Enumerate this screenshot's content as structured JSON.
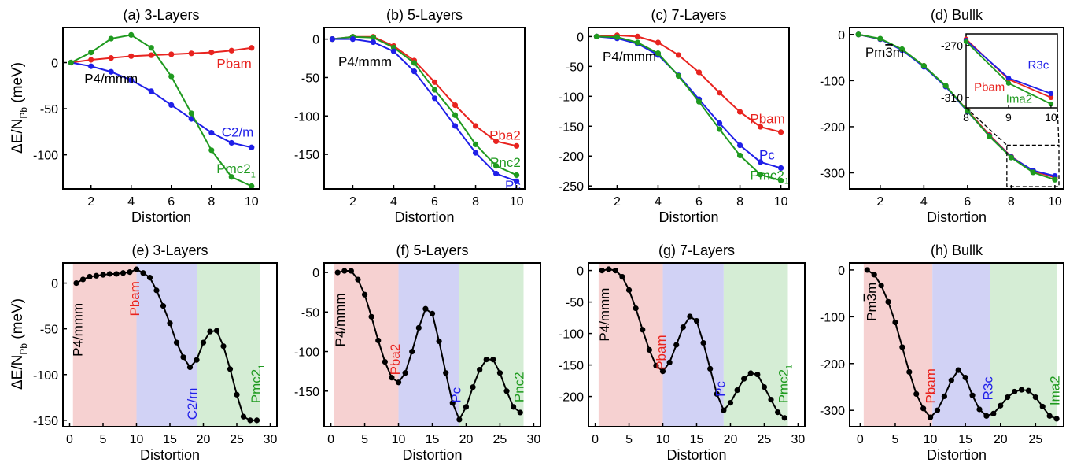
{
  "figure": {
    "y_label_main": "ΔE/N",
    "y_label_sub": "Pb",
    "y_label_unit": " (meV)"
  },
  "colors": {
    "red": "#e8231f",
    "blue": "#1f1fe8",
    "green": "#1f9a1f",
    "black": "#000000",
    "shade_red": "#f6cfcf",
    "shade_blue": "#cfd0f4",
    "shade_green": "#d3ecd3"
  },
  "chart_data": [
    {
      "type": "line",
      "panel": "(a) 3-Layers",
      "title": "(a) 3-Layers",
      "xlabel": "Distortion",
      "xlim": [
        0.6,
        10.4
      ],
      "ylim": [
        -137,
        38
      ],
      "xticks": [
        2,
        4,
        6,
        8,
        10
      ],
      "yticks": [
        0,
        -50,
        -100
      ],
      "x": [
        1,
        2,
        3,
        4,
        5,
        6,
        7,
        8,
        9,
        10
      ],
      "series": [
        {
          "name": "Pbam",
          "color": "red",
          "values": [
            0,
            3,
            5,
            7,
            8,
            9,
            10,
            11,
            13,
            16
          ]
        },
        {
          "name": "C2/m",
          "color": "blue",
          "values": [
            0,
            -4,
            -10,
            -19,
            -31,
            -46,
            -61,
            -76,
            -87,
            -92
          ]
        },
        {
          "name": "Pmc2",
          "sub": "1",
          "color": "green",
          "values": [
            0,
            11,
            26,
            30,
            16,
            -15,
            -55,
            -95,
            -124,
            -134
          ]
        }
      ],
      "labels": [
        {
          "text": "P4/mmm",
          "color": "black",
          "x": 3.0,
          "y": -17,
          "anchor": "middle"
        },
        {
          "text": "Pbam",
          "color": "red",
          "x": 10.0,
          "y": -1,
          "anchor": "end"
        },
        {
          "text": "C2/m",
          "color": "blue",
          "x": 10.1,
          "y": -75,
          "anchor": "end"
        },
        {
          "text": "Pmc2",
          "sub": "1",
          "color": "green",
          "x": 10.2,
          "y": -115,
          "anchor": "end"
        }
      ]
    },
    {
      "type": "line",
      "panel": "(b) 5-Layers",
      "title": "(b) 5-Layers",
      "xlabel": "Distortion",
      "xlim": [
        0.6,
        10.4
      ],
      "ylim": [
        -195,
        15
      ],
      "xticks": [
        2,
        4,
        6,
        8,
        10
      ],
      "yticks": [
        0,
        -50,
        -100,
        -150
      ],
      "x": [
        1,
        2,
        3,
        4,
        5,
        6,
        7,
        8,
        9,
        10
      ],
      "series": [
        {
          "name": "Pba2",
          "color": "red",
          "values": [
            0,
            3,
            3,
            -9,
            -28,
            -56,
            -86,
            -113,
            -133,
            -139
          ]
        },
        {
          "name": "Pnc2",
          "color": "green",
          "values": [
            0,
            3,
            2,
            -11,
            -31,
            -66,
            -99,
            -137,
            -165,
            -177
          ]
        },
        {
          "name": "Pc",
          "color": "blue",
          "values": [
            0,
            0,
            -4,
            -16,
            -42,
            -77,
            -113,
            -148,
            -175,
            -185
          ]
        }
      ],
      "labels": [
        {
          "text": "P4/mmm",
          "color": "black",
          "x": 2.6,
          "y": -29,
          "anchor": "middle"
        },
        {
          "text": "Pba2",
          "color": "red",
          "x": 10.2,
          "y": -125,
          "anchor": "end"
        },
        {
          "text": "Pnc2",
          "color": "green",
          "x": 10.2,
          "y": -160,
          "anchor": "end"
        },
        {
          "text": "Pc",
          "color": "blue",
          "x": 10.2,
          "y": -190,
          "anchor": "end"
        }
      ]
    },
    {
      "type": "line",
      "panel": "(c) 7-Layers",
      "title": "(c) 7-Layers",
      "xlabel": "Distortion",
      "xlim": [
        0.6,
        10.4
      ],
      "ylim": [
        -255,
        15
      ],
      "xticks": [
        2,
        4,
        6,
        8,
        10
      ],
      "yticks": [
        0,
        -50,
        -100,
        -150,
        -200,
        -250
      ],
      "x": [
        1,
        2,
        3,
        4,
        5,
        6,
        7,
        8,
        9,
        10
      ],
      "series": [
        {
          "name": "Pbam",
          "color": "red",
          "values": [
            0,
            2,
            0,
            -10,
            -31,
            -60,
            -94,
            -126,
            -151,
            -160
          ]
        },
        {
          "name": "Pc",
          "color": "blue",
          "values": [
            0,
            -3,
            -12,
            -31,
            -65,
            -105,
            -145,
            -182,
            -210,
            -220
          ]
        },
        {
          "name": "Pmc2",
          "sub": "1",
          "color": "green",
          "values": [
            0,
            -1,
            -10,
            -28,
            -66,
            -109,
            -155,
            -199,
            -231,
            -241
          ]
        }
      ],
      "labels": [
        {
          "text": "P4/mmm",
          "color": "black",
          "x": 2.6,
          "y": -33,
          "anchor": "middle"
        },
        {
          "text": "Pbam",
          "color": "red",
          "x": 10.2,
          "y": -137,
          "anchor": "end"
        },
        {
          "text": "Pc",
          "color": "blue",
          "x": 9.7,
          "y": -198,
          "anchor": "end"
        },
        {
          "text": "Pmc2",
          "sub": "1",
          "color": "green",
          "x": 10.4,
          "y": -232,
          "anchor": "end"
        }
      ]
    },
    {
      "type": "line",
      "panel": "(d) Bullk",
      "title": "(d) Bullk",
      "xlabel": "Distortion",
      "xlim": [
        0.6,
        10.4
      ],
      "ylim": [
        -335,
        15
      ],
      "xticks": [
        2,
        4,
        6,
        8,
        10
      ],
      "yticks": [
        0,
        -100,
        -200,
        -300
      ],
      "x": [
        1,
        2,
        3,
        4,
        5,
        6,
        7,
        8,
        9,
        10
      ],
      "series": [
        {
          "name": "Pbam",
          "color": "red",
          "values": [
            0,
            -10,
            -33,
            -68,
            -112,
            -165,
            -218,
            -265,
            -296,
            -310
          ]
        },
        {
          "name": "R3c",
          "color": "blue",
          "values": [
            0,
            -10,
            -34,
            -70,
            -113,
            -167,
            -220,
            -266,
            -295,
            -307
          ]
        },
        {
          "name": "Ima2",
          "color": "green",
          "values": [
            0,
            -9,
            -32,
            -68,
            -111,
            -166,
            -221,
            -267,
            -299,
            -315
          ]
        }
      ],
      "labels": [
        {
          "text": "Pm3m",
          "over": "3",
          "color": "black",
          "x": 2.2,
          "y": -38,
          "anchor": "middle"
        }
      ],
      "inset": {
        "xlim": [
          8,
          10.15
        ],
        "ylim": [
          -318,
          -261
        ],
        "xticks": [
          8,
          9,
          10
        ],
        "yticks": [
          -270,
          -310
        ],
        "labels": [
          {
            "text": "R3c",
            "color": "blue",
            "x": 9.95,
            "y": -285,
            "anchor": "end"
          },
          {
            "text": "Pbam",
            "color": "red",
            "x": 8.55,
            "y": -302,
            "anchor": "middle"
          },
          {
            "text": "Ima2",
            "color": "green",
            "x": 9.25,
            "y": -311,
            "anchor": "middle"
          }
        ]
      }
    },
    {
      "type": "line",
      "panel": "(e) 3-Layers",
      "title": "(e) 3-Layers",
      "xlabel": "Distortion",
      "xlim": [
        -1,
        31
      ],
      "ylim": [
        -157,
        22
      ],
      "xticks": [
        0,
        5,
        10,
        15,
        20,
        25,
        30
      ],
      "yticks": [
        0,
        -50,
        -100,
        -150
      ],
      "bands": [
        [
          0.5,
          10
        ],
        [
          10,
          19
        ],
        [
          19,
          28.5
        ]
      ],
      "x": [
        1,
        2,
        3,
        4,
        5,
        6,
        7,
        8,
        9,
        10,
        11,
        12,
        13,
        14,
        15,
        16,
        17,
        18,
        19,
        20,
        21,
        22,
        23,
        24,
        25,
        26,
        27,
        28
      ],
      "series": [
        {
          "name": "path",
          "color": "black",
          "values": [
            0,
            4,
            7,
            8,
            9,
            10,
            10,
            11,
            12,
            15,
            11,
            6,
            -8,
            -25,
            -44,
            -65,
            -81,
            -92,
            -84,
            -65,
            -53,
            -52,
            -69,
            -94,
            -122,
            -146,
            -150,
            -150
          ]
        }
      ],
      "vlabels": [
        {
          "text": "P4/mmm",
          "color": "black",
          "x": 1.2,
          "y": -51
        },
        {
          "text": "Pbam",
          "color": "red",
          "x": 9.7,
          "y": -17
        },
        {
          "text": "C2/m",
          "color": "blue",
          "x": 18.3,
          "y": -132
        },
        {
          "text": "Pmc2",
          "sub": "1",
          "color": "green",
          "x": 27.8,
          "y": -110
        }
      ]
    },
    {
      "type": "line",
      "panel": "(f) 5-Layers",
      "title": "(f) 5-Layers",
      "xlabel": "Distortion",
      "xlim": [
        -1,
        31
      ],
      "ylim": [
        -195,
        12
      ],
      "xticks": [
        0,
        5,
        10,
        15,
        20,
        25,
        30
      ],
      "yticks": [
        0,
        -50,
        -100,
        -150
      ],
      "bands": [
        [
          0.5,
          10
        ],
        [
          10,
          19
        ],
        [
          19,
          28.5
        ]
      ],
      "x": [
        1,
        2,
        3,
        4,
        5,
        6,
        7,
        8,
        9,
        10,
        11,
        12,
        13,
        14,
        15,
        16,
        17,
        18,
        19,
        20,
        21,
        22,
        23,
        24,
        25,
        26,
        27,
        28
      ],
      "series": [
        {
          "name": "path",
          "color": "black",
          "values": [
            0,
            2,
            2,
            -9,
            -28,
            -56,
            -86,
            -113,
            -133,
            -139,
            -127,
            -100,
            -70,
            -46,
            -52,
            -87,
            -127,
            -165,
            -186,
            -170,
            -145,
            -123,
            -110,
            -110,
            -127,
            -150,
            -170,
            -177
          ]
        }
      ],
      "vlabels": [
        {
          "text": "P4/mmm",
          "color": "black",
          "x": 1.3,
          "y": -60
        },
        {
          "text": "Pba2",
          "color": "red",
          "x": 9.5,
          "y": -110
        },
        {
          "text": "Pc",
          "color": "blue",
          "x": 18.5,
          "y": -155
        },
        {
          "text": "Pnc2",
          "color": "green",
          "x": 27.8,
          "y": -145
        }
      ]
    },
    {
      "type": "line",
      "panel": "(g) 7-Layers",
      "title": "(g) 7-Layers",
      "xlabel": "Distortion",
      "xlim": [
        -1,
        31
      ],
      "ylim": [
        -248,
        12
      ],
      "xticks": [
        0,
        5,
        10,
        15,
        20,
        25,
        30
      ],
      "yticks": [
        0,
        -50,
        -100,
        -150,
        -200
      ],
      "bands": [
        [
          0.5,
          10
        ],
        [
          10,
          19
        ],
        [
          19,
          28.5
        ]
      ],
      "x": [
        1,
        2,
        3,
        4,
        5,
        6,
        7,
        8,
        9,
        10,
        11,
        12,
        13,
        14,
        15,
        16,
        17,
        18,
        19,
        20,
        21,
        22,
        23,
        24,
        25,
        26,
        27,
        28
      ],
      "series": [
        {
          "name": "path",
          "color": "black",
          "values": [
            0,
            2,
            0,
            -10,
            -31,
            -60,
            -94,
            -126,
            -151,
            -160,
            -146,
            -118,
            -90,
            -73,
            -80,
            -115,
            -156,
            -196,
            -222,
            -210,
            -190,
            -172,
            -163,
            -165,
            -185,
            -205,
            -225,
            -234
          ]
        }
      ],
      "vlabels": [
        {
          "text": "P4/mmm",
          "color": "black",
          "x": 1.3,
          "y": -70
        },
        {
          "text": "Pbam",
          "color": "red",
          "x": 9.7,
          "y": -130
        },
        {
          "text": "Pc",
          "color": "blue",
          "x": 18.5,
          "y": -188
        },
        {
          "text": "Pmc2",
          "sub": "1",
          "color": "green",
          "x": 27.8,
          "y": -180
        }
      ]
    },
    {
      "type": "line",
      "panel": "(h) Bullk",
      "title": "(h) Bullk",
      "xlabel": "Distortion",
      "xlim": [
        -1.5,
        29
      ],
      "ylim": [
        -335,
        15
      ],
      "xticks": [
        0,
        5,
        10,
        15,
        20,
        25
      ],
      "yticks": [
        0,
        -100,
        -200,
        -300
      ],
      "bands": [
        [
          0.5,
          10.3
        ],
        [
          10.3,
          18.5
        ],
        [
          18.5,
          28
        ]
      ],
      "x": [
        1,
        2,
        3,
        4,
        5,
        6,
        7,
        8,
        9,
        10,
        11,
        12,
        13,
        14,
        15,
        16,
        17,
        18,
        19,
        20,
        21,
        22,
        23,
        24,
        25,
        26,
        27,
        28
      ],
      "series": [
        {
          "name": "path",
          "color": "black",
          "values": [
            0,
            -10,
            -33,
            -68,
            -112,
            -165,
            -218,
            -265,
            -296,
            -315,
            -300,
            -270,
            -236,
            -214,
            -230,
            -268,
            -298,
            -312,
            -307,
            -290,
            -272,
            -260,
            -256,
            -258,
            -272,
            -292,
            -312,
            -318
          ]
        }
      ],
      "vlabels": [
        {
          "text": "Pm3m",
          "over": "3",
          "color": "black",
          "x": 1.6,
          "y": -68
        },
        {
          "text": "Pbam",
          "color": "red",
          "x": 10.0,
          "y": -248
        },
        {
          "text": "R3c",
          "color": "blue",
          "x": 18.2,
          "y": -253
        },
        {
          "text": "Ima2",
          "color": "green",
          "x": 27.7,
          "y": -258
        }
      ]
    }
  ]
}
